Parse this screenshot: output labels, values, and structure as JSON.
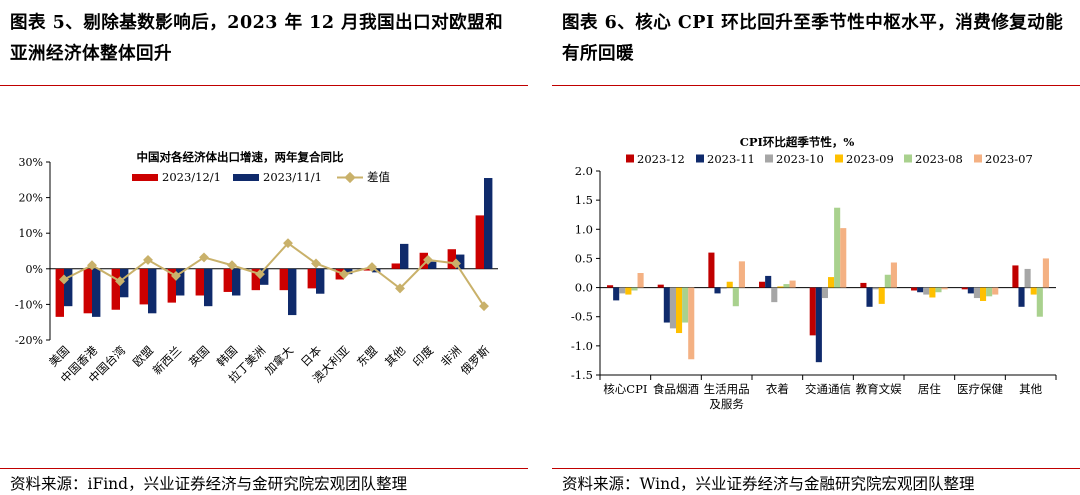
{
  "left": {
    "title": "图表 5、剔除基数影响后，2023 年 12 月我国出口对欧盟和亚洲经济体整体回升",
    "source": "资料来源：iFind，兴业证券经济与金研究院宏观团队整理"
  },
  "right": {
    "title": "图表 6、核心 CPI 环比回升至季节性中枢水平，消费修复动能有所回暖",
    "source": "资料来源：Wind，兴业证券经济与金融研究院宏观团队整理"
  },
  "chart_data": [
    {
      "type": "bar",
      "title": "中国对各经济体出口增速，两年复合同比",
      "categories": [
        "美国",
        "中国香港",
        "中国台湾",
        "欧盟",
        "新西兰",
        "英国",
        "韩国",
        "拉丁美洲",
        "加拿大",
        "日本",
        "澳大利亚",
        "东盟",
        "其他",
        "印度",
        "非洲",
        "俄罗斯"
      ],
      "series": [
        {
          "name": "2023/12/1",
          "kind": "bar",
          "color": "#cc0000",
          "values": [
            -13.5,
            -12.5,
            -11.5,
            -10,
            -9.5,
            -7.5,
            -6.5,
            -6,
            -6,
            -5.5,
            -3,
            -0.5,
            1.5,
            4.5,
            5.5,
            15
          ]
        },
        {
          "name": "2023/11/1",
          "kind": "bar",
          "color": "#0f2a6b",
          "values": [
            -10.5,
            -13.5,
            -8,
            -12.5,
            -7.5,
            -10.5,
            -7.5,
            -4.5,
            -13,
            -7,
            -1.5,
            -1,
            7,
            2,
            4,
            25.5
          ]
        },
        {
          "name": "差值",
          "kind": "line",
          "color": "#c9b16a",
          "values": [
            -3,
            1,
            -3.5,
            2.5,
            -2,
            3.2,
            1,
            -1.5,
            7.2,
            1.5,
            -1.5,
            0.5,
            -5.5,
            2.5,
            1.5,
            -10.5
          ]
        }
      ],
      "yticks": [
        "30%",
        "20%",
        "10%",
        "0%",
        "-10%",
        "-20%"
      ],
      "ylim": [
        -20,
        30
      ],
      "xlabel": "",
      "ylabel": ""
    },
    {
      "type": "bar",
      "title": "CPI环比超季节性，%",
      "categories": [
        "核心CPI",
        "食品烟酒",
        "生活用品及服务",
        "衣着",
        "交通通信",
        "教育文娱",
        "居住",
        "医疗保健",
        "其他"
      ],
      "category_lines": [
        [
          "核心CPI"
        ],
        [
          "食品烟酒"
        ],
        [
          "生活用品",
          "及服务"
        ],
        [
          "衣着"
        ],
        [
          "交通通信"
        ],
        [
          "教育文娱"
        ],
        [
          "居住"
        ],
        [
          "医疗保健"
        ],
        [
          "其他"
        ]
      ],
      "series": [
        {
          "name": "2023-12",
          "color": "#c00000",
          "values": [
            0.04,
            0.05,
            0.6,
            0.1,
            -0.82,
            0.08,
            -0.05,
            -0.03,
            0.38
          ]
        },
        {
          "name": "2023-11",
          "color": "#0f2a6b",
          "values": [
            -0.22,
            -0.6,
            -0.1,
            0.2,
            -1.28,
            -0.33,
            -0.08,
            -0.1,
            -0.33
          ]
        },
        {
          "name": "2023-10",
          "color": "#a6a6a6",
          "values": [
            -0.1,
            -0.7,
            -0.02,
            -0.25,
            -0.18,
            -0.03,
            -0.12,
            -0.18,
            0.32
          ]
        },
        {
          "name": "2023-09",
          "color": "#ffc000",
          "values": [
            -0.12,
            -0.78,
            0.1,
            0.02,
            0.18,
            -0.28,
            -0.17,
            -0.23,
            -0.12
          ]
        },
        {
          "name": "2023-08",
          "color": "#a9d18e",
          "values": [
            -0.05,
            -0.6,
            -0.32,
            0.06,
            1.37,
            0.22,
            -0.08,
            -0.15,
            -0.5
          ]
        },
        {
          "name": "2023-07",
          "color": "#f4b183",
          "values": [
            0.25,
            -1.23,
            0.45,
            0.12,
            1.02,
            0.43,
            -0.03,
            -0.12,
            0.5
          ]
        }
      ],
      "yticks": [
        "2.0",
        "1.5",
        "1.0",
        "0.5",
        "0.0",
        "-0.5",
        "-1.0",
        "-1.5"
      ],
      "ylim": [
        -1.5,
        2.0
      ],
      "xlabel": "",
      "ylabel": ""
    }
  ]
}
